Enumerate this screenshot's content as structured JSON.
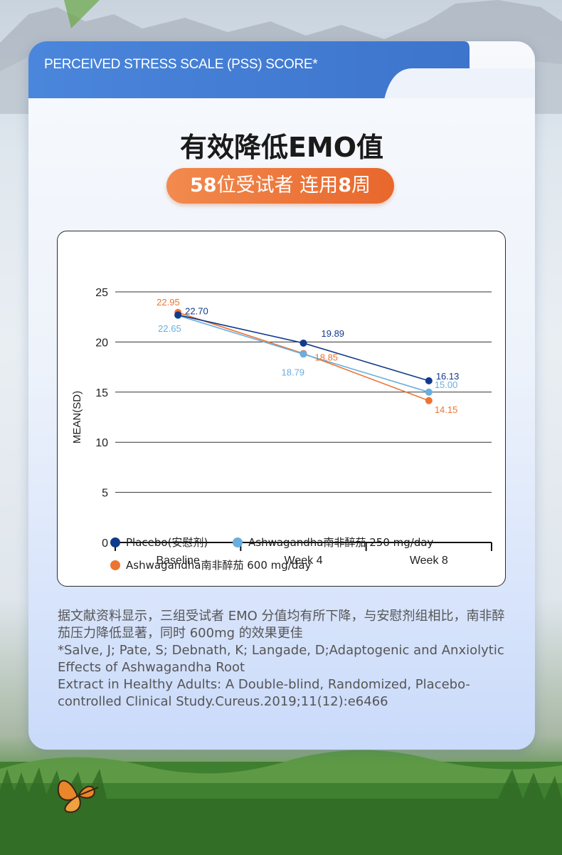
{
  "header": {
    "tab_title": "PERCEIVED STRESS SCALE (PSS) SCORE*",
    "headline": "有效降低EMO值",
    "pill_num1": "58",
    "pill_text1": "位受试者 连用",
    "pill_num2": "8",
    "pill_text2": "周"
  },
  "chart_data": {
    "type": "line",
    "ylabel": "MEAN(SD)",
    "xlabel": "",
    "ylim": [
      0,
      25
    ],
    "yticks": [
      "0",
      "5",
      "10",
      "15",
      "20",
      "25"
    ],
    "categories": [
      "Baseline",
      "Week 4",
      "Week 8"
    ],
    "grid": true,
    "legend_position": "bottom",
    "series": [
      {
        "name": "Placebo(安慰剂)",
        "color": "#123a8c",
        "values": [
          22.7,
          19.89,
          16.13
        ],
        "labels": [
          "22.70",
          "19.89",
          "16.13"
        ]
      },
      {
        "name": "Ashwagandha南非醉茄 250 mg/day",
        "color": "#6aaee0",
        "values": [
          22.65,
          18.79,
          15.0
        ],
        "labels": [
          "22.65",
          "18.79",
          "15.00"
        ]
      },
      {
        "name": "Ashwagandha南非醉茄 600 mg/day",
        "color": "#ec7433",
        "values": [
          22.95,
          18.85,
          14.15
        ],
        "labels": [
          "22.95",
          "18.85",
          "14.15"
        ]
      }
    ]
  },
  "description": {
    "line1": "据文献资料显示，三组受试者 EMO 分值均有所下降，与安慰剂组相比，南非醉茄压力降低显著，同时 600mg 的效果更佳",
    "line2": "*Salve, J; Pate, S; Debnath, K; Langade, D;Adaptogenic and Anxiolytic Effects of Ashwagandha Root",
    "line3": "Extract in Healthy Adults: A Double-blind, Randomized, Placebo-controlled Clinical Study.Cureus.2019;11(12):e6466"
  }
}
